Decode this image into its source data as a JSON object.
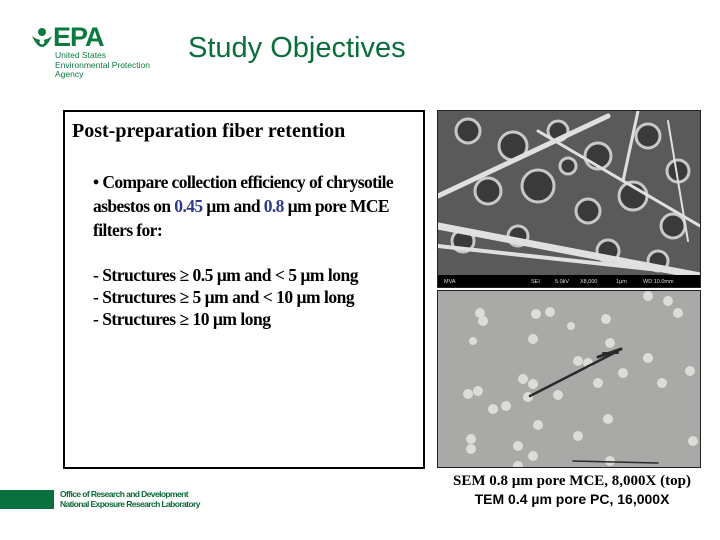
{
  "logo": {
    "word": "EPA",
    "subtitle_lines": [
      "United States",
      "Environmental Protection",
      "Agency"
    ]
  },
  "title": "Study Objectives",
  "content": {
    "heading": "Post-preparation fiber retention",
    "bullet": {
      "part1": "Compare collection efficiency of chrysotile asbestos on ",
      "value1": "0.45",
      "part2": " µm and ",
      "value2": "0.8",
      "part3": " µm pore MCE filters for:"
    },
    "dashes": [
      "- Structures ≥ 0.5 µm and < 5 µm long",
      "- Structures ≥ 5 µm and < 10 µm long",
      "- Structures ≥ 10 µm long"
    ],
    "highlight_color": "#2e3a86"
  },
  "sem_image": {
    "databar": [
      "MVA",
      "SEI",
      "5.0kV",
      "X8,000",
      "1µm",
      "WD 10.0mm"
    ]
  },
  "caption": {
    "line1": "SEM 0.8 µm pore MCE, 8,000X (top)",
    "line2": "TEM 0.4 µm pore PC, 16,000X"
  },
  "footer": {
    "line1": "Office of Research and Development",
    "line2": "National Exposure Research Laboratory"
  },
  "brand_color": "#0a7040"
}
